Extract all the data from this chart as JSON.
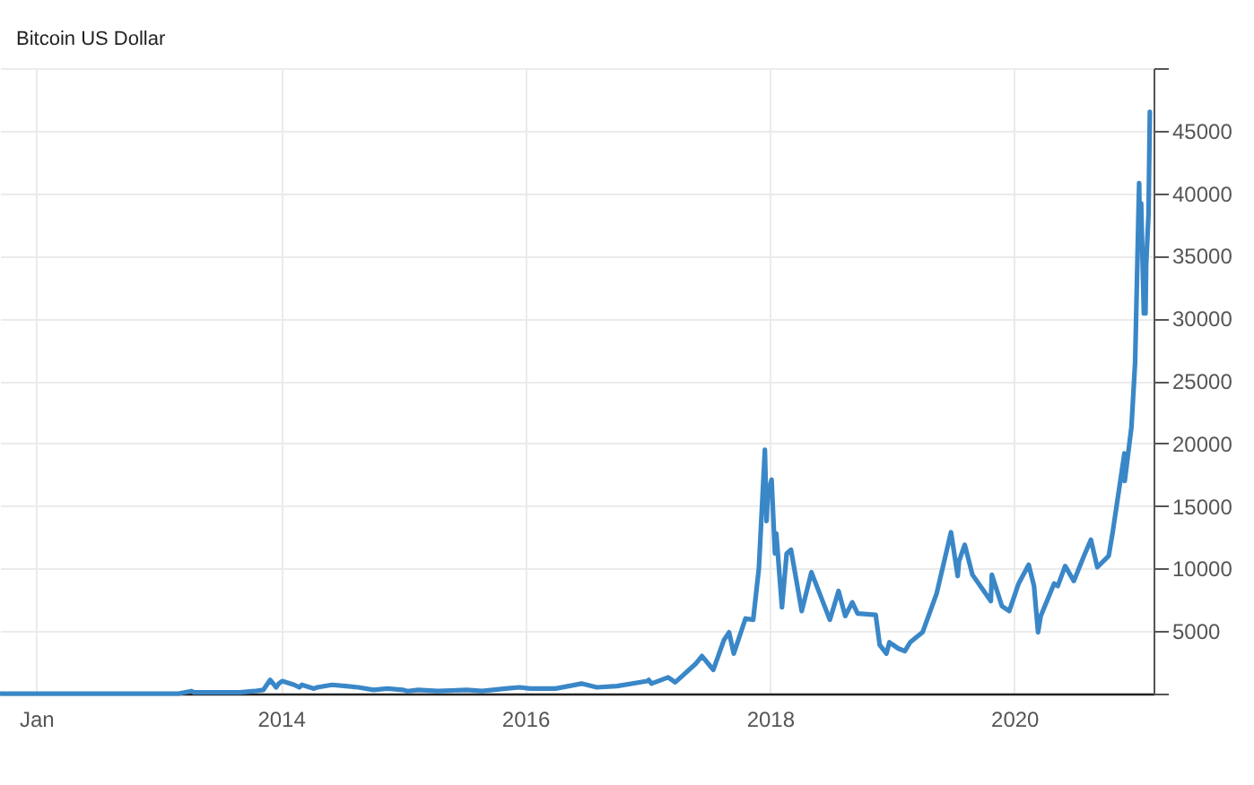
{
  "chart_data": {
    "type": "line",
    "title": "Bitcoin US Dollar",
    "x": [
      "2011-09-15",
      "2012-01-01",
      "2012-06-01",
      "2012-09-01",
      "2013-01-01",
      "2013-03-01",
      "2013-04-09",
      "2013-04-16",
      "2013-05-15",
      "2013-07-05",
      "2013-09-01",
      "2013-10-15",
      "2013-11-10",
      "2013-11-30",
      "2013-12-18",
      "2013-12-26",
      "2014-01-05",
      "2014-02-10",
      "2014-02-25",
      "2014-03-05",
      "2014-04-10",
      "2014-04-20",
      "2014-06-03",
      "2014-07-15",
      "2014-08-20",
      "2014-10-05",
      "2014-11-15",
      "2014-12-31",
      "2015-01-14",
      "2015-02-15",
      "2015-04-15",
      "2015-07-10",
      "2015-08-25",
      "2015-11-04",
      "2015-12-15",
      "2016-01-15",
      "2016-04-01",
      "2016-06-17",
      "2016-08-02",
      "2016-10-01",
      "2016-12-31",
      "2017-01-04",
      "2017-01-12",
      "2017-03-03",
      "2017-03-24",
      "2017-05-25",
      "2017-06-12",
      "2017-07-16",
      "2017-08-17",
      "2017-09-01",
      "2017-09-15",
      "2017-10-20",
      "2017-11-12",
      "2017-11-29",
      "2017-12-17",
      "2017-12-22",
      "2017-12-26",
      "2018-01-06",
      "2018-01-16",
      "2018-01-20",
      "2018-02-06",
      "2018-02-20",
      "2018-03-05",
      "2018-04-06",
      "2018-05-05",
      "2018-06-29",
      "2018-07-25",
      "2018-08-14",
      "2018-09-04",
      "2018-09-20",
      "2018-11-13",
      "2018-11-25",
      "2018-12-15",
      "2018-12-24",
      "2019-01-20",
      "2019-02-08",
      "2019-02-24",
      "2019-04-02",
      "2019-05-14",
      "2019-06-26",
      "2019-07-16",
      "2019-07-20",
      "2019-08-06",
      "2019-08-29",
      "2019-09-24",
      "2019-10-23",
      "2019-10-26",
      "2019-11-25",
      "2019-12-17",
      "2020-01-14",
      "2020-02-13",
      "2020-02-29",
      "2020-03-12",
      "2020-03-15",
      "2020-03-20",
      "2020-04-29",
      "2020-05-10",
      "2020-06-01",
      "2020-06-27",
      "2020-07-27",
      "2020-08-17",
      "2020-09-05",
      "2020-10-09",
      "2020-10-21",
      "2020-11-05",
      "2020-11-25",
      "2020-11-26",
      "2020-12-16",
      "2020-12-27",
      "2021-01-08",
      "2021-01-11",
      "2021-01-14",
      "2021-01-22",
      "2021-01-27",
      "2021-01-29",
      "2021-02-05",
      "2021-02-09"
    ],
    "series": [
      {
        "color": "#3a87c8",
        "values": [
          0,
          0,
          0,
          0,
          0,
          0,
          200,
          100,
          100,
          100,
          100,
          200,
          300,
          1100,
          500,
          800,
          1000,
          700,
          500,
          700,
          400,
          500,
          700,
          600,
          500,
          300,
          400,
          300,
          200,
          300,
          200,
          300,
          200,
          400,
          500,
          400,
          400,
          800,
          500,
          600,
          1000,
          1100,
          800,
          1300,
          900,
          2400,
          3000,
          1900,
          4300,
          4900,
          3200,
          6000,
          5900,
          10000,
          19500,
          13800,
          16000,
          17100,
          11200,
          12800,
          6900,
          11200,
          11500,
          6600,
          9700,
          5900,
          8200,
          6200,
          7300,
          6400,
          6300,
          3900,
          3200,
          4100,
          3600,
          3400,
          4100,
          4900,
          8000,
          12900,
          9400,
          10600,
          11900,
          9500,
          8500,
          7400,
          9500,
          7000,
          6600,
          8800,
          10300,
          8600,
          4900,
          5400,
          6200,
          8800,
          8600,
          10200,
          9000,
          11000,
          12300,
          10100,
          11000,
          12900,
          15600,
          19200,
          17000,
          21300,
          26500,
          40800,
          35500,
          39200,
          30400,
          30400,
          34300,
          38300,
          46500
        ]
      }
    ],
    "xlim": [
      "2011-09-15",
      "2021-02-20"
    ],
    "xticks": [
      {
        "value": "2012",
        "label": "Jan"
      },
      "2014",
      "2016",
      "2018",
      "2020"
    ],
    "ylim": [
      0,
      50000
    ],
    "yticks": [
      {
        "value": 0,
        "label": null
      },
      5000,
      10000,
      15000,
      20000,
      25000,
      30000,
      35000,
      40000,
      45000,
      {
        "value": 50000,
        "label": null
      }
    ],
    "grid": true
  }
}
